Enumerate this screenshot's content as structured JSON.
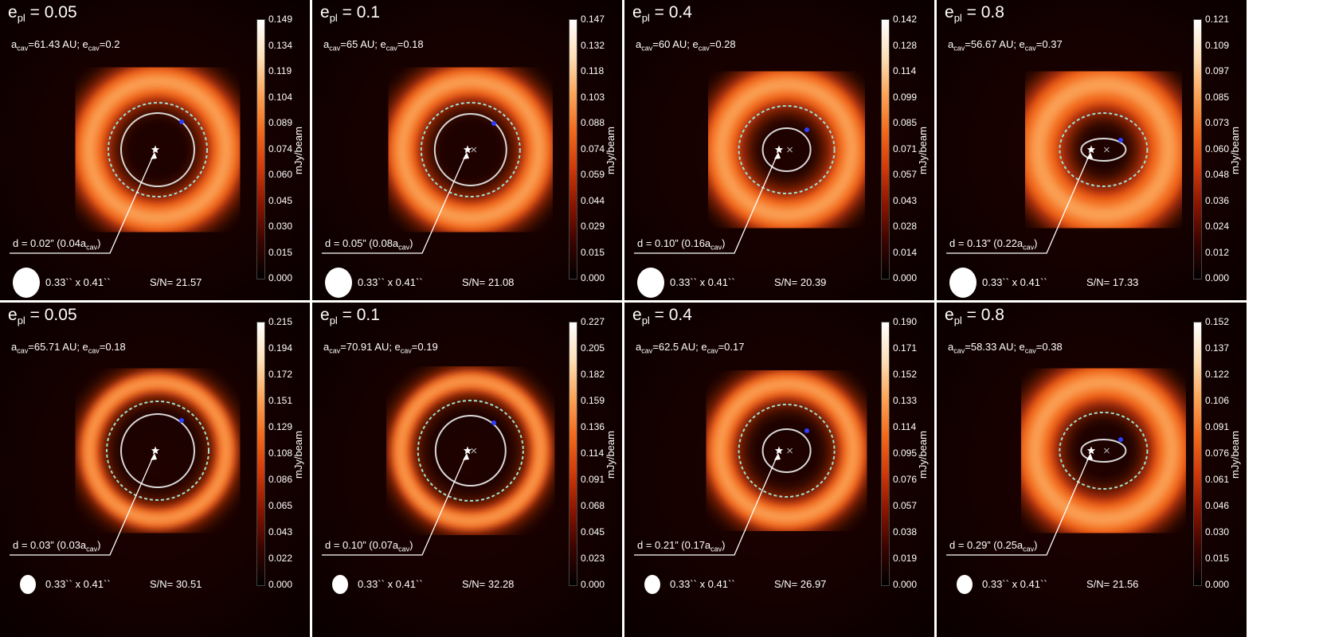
{
  "colorbar_unit": "mJy/beam",
  "beam_label": "0.33`` x 0.41``",
  "colormap": [
    "#000000",
    "#3a0400",
    "#8a1500",
    "#d13a0a",
    "#f26a1c",
    "#fba55a",
    "#fde0b8",
    "#ffffff"
  ],
  "rows": [
    {
      "panels": [
        {
          "epl": "0.05",
          "acav_text": "=61.43 AU; e",
          "ecav": "=0.2",
          "d_text": "d = 0.02” (0.04a",
          "sn": "S/N= 21.57",
          "ticks": [
            "0.149",
            "0.134",
            "0.119",
            "0.104",
            "0.089",
            "0.074",
            "0.060",
            "0.045",
            "0.030",
            "0.015",
            "0.000"
          ]
        },
        {
          "epl": "0.1",
          "acav_text": "=65 AU; e",
          "ecav": "=0.18",
          "d_text": "d = 0.05” (0.08a",
          "sn": "S/N= 21.08",
          "ticks": [
            "0.147",
            "0.132",
            "0.118",
            "0.103",
            "0.088",
            "0.074",
            "0.059",
            "0.044",
            "0.029",
            "0.015",
            "0.000"
          ]
        },
        {
          "epl": "0.4",
          "acav_text": "=60 AU; e",
          "ecav": "=0.28",
          "d_text": "d = 0.10” (0.16a",
          "sn": "S/N= 20.39",
          "ticks": [
            "0.142",
            "0.128",
            "0.114",
            "0.099",
            "0.085",
            "0.071",
            "0.057",
            "0.043",
            "0.028",
            "0.014",
            "0.000"
          ]
        },
        {
          "epl": "0.8",
          "acav_text": "=56.67 AU; e",
          "ecav": "=0.37",
          "d_text": "d = 0.13” (0.22a",
          "sn": "S/N= 17.33",
          "ticks": [
            "0.121",
            "0.109",
            "0.097",
            "0.085",
            "0.073",
            "0.060",
            "0.048",
            "0.036",
            "0.024",
            "0.012",
            "0.000"
          ]
        }
      ]
    },
    {
      "panels": [
        {
          "epl": "0.05",
          "acav_text": "=65.71 AU; e",
          "ecav": "=0.18",
          "d_text": "d = 0.03” (0.03a",
          "sn": "S/N= 30.51",
          "ticks": [
            "0.215",
            "0.194",
            "0.172",
            "0.151",
            "0.129",
            "0.108",
            "0.086",
            "0.065",
            "0.043",
            "0.022",
            "0.000"
          ]
        },
        {
          "epl": "0.1",
          "acav_text": "=70.91 AU; e",
          "ecav": "=0.19",
          "d_text": "d = 0.10” (0.07a",
          "sn": "S/N= 32.28",
          "ticks": [
            "0.227",
            "0.205",
            "0.182",
            "0.159",
            "0.136",
            "0.114",
            "0.091",
            "0.068",
            "0.045",
            "0.023",
            "0.000"
          ]
        },
        {
          "epl": "0.4",
          "acav_text": "=62.5 AU; e",
          "ecav": "=0.17",
          "d_text": "d = 0.21” (0.17a",
          "sn": "S/N= 26.97",
          "ticks": [
            "0.190",
            "0.171",
            "0.152",
            "0.133",
            "0.114",
            "0.095",
            "0.076",
            "0.057",
            "0.038",
            "0.019",
            "0.000"
          ]
        },
        {
          "epl": "0.8",
          "acav_text": "=58.33 AU; e",
          "ecav": "=0.38",
          "d_text": "d = 0.29” (0.25a",
          "sn": "S/N= 21.56",
          "ticks": [
            "0.152",
            "0.137",
            "0.122",
            "0.106",
            "0.091",
            "0.076",
            "0.061",
            "0.046",
            "0.030",
            "0.015",
            "0.000"
          ]
        }
      ]
    }
  ],
  "labels": {
    "e_sub": "pl",
    "a_sub": "cav",
    "e_prefix": "e",
    "a_prefix": "a",
    "eq": "= "
  }
}
